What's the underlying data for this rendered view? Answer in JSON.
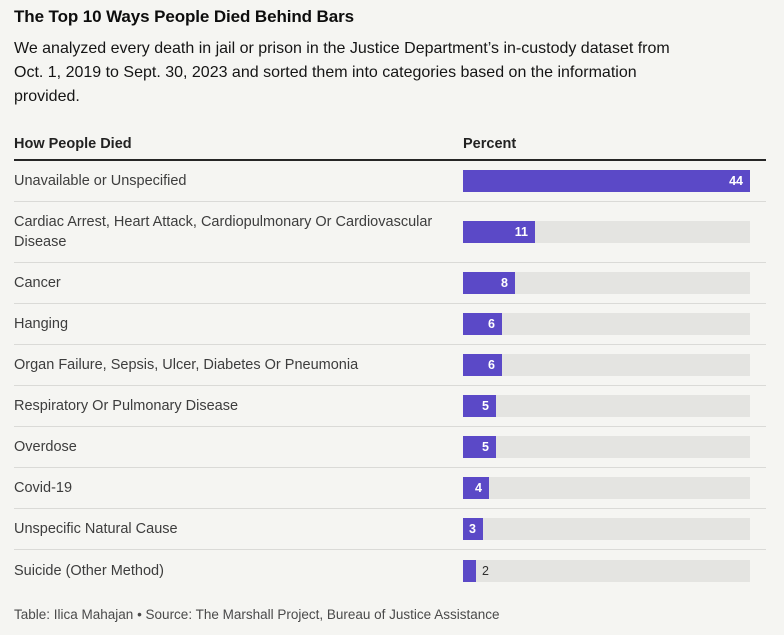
{
  "page": {
    "background_color": "#f5f5f2"
  },
  "chart_data": {
    "type": "bar",
    "orientation": "horizontal",
    "title": "The Top 10 Ways People Died Behind Bars",
    "subtitle_lines": [
      "We analyzed every death in jail or prison in the Justice Department’s in-custody dataset from",
      "Oct. 1, 2019 to Sept. 30, 2023 and sorted them into categories based on the information",
      "provided."
    ],
    "column_headers": {
      "category": "How People Died",
      "value": "Percent"
    },
    "categories": [
      "Unavailable or Unspecified",
      "Cardiac Arrest, Heart Attack, Cardiopulmonary Or Cardiovascular Disease",
      "Cancer",
      "Hanging",
      "Organ Failure, Sepsis, Ulcer, Diabetes Or Pneumonia",
      "Respiratory Or Pulmonary Disease",
      "Overdose",
      "Covid-19",
      "Unspecific Natural Cause",
      "Suicide (Other Method)"
    ],
    "values": [
      44,
      11,
      8,
      6,
      6,
      5,
      5,
      4,
      3,
      2
    ],
    "xlabel": "Percent",
    "xlim": [
      0,
      44
    ],
    "grid": false,
    "legend": false,
    "bar_color": "#5b49c7",
    "track_color": "#e4e4e1",
    "value_label_inside_color": "#ffffff",
    "value_label_outside_color": "#2f2f2f",
    "footer": "Table: Ilica Mahajan • Source: The Marshall Project, Bureau of Justice Assistance"
  }
}
